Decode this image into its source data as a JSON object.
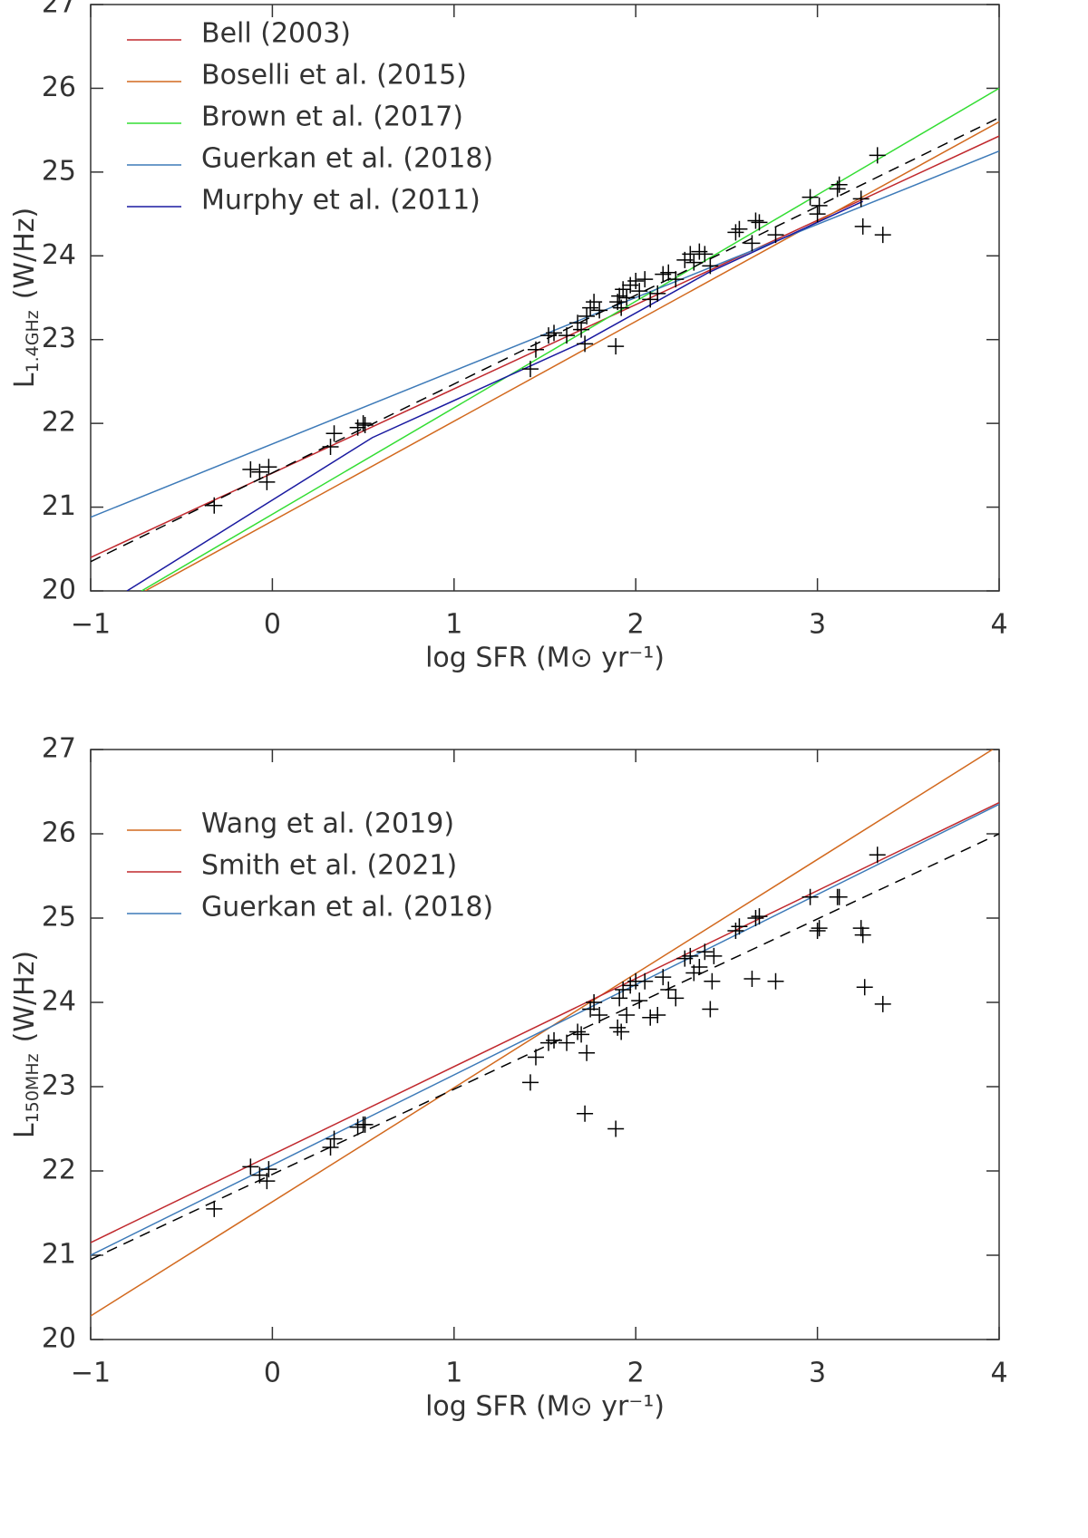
{
  "chart_data": [
    {
      "type": "line",
      "x_label": "log SFR (M⊙ yr⁻¹)",
      "y_label": {
        "main": "L",
        "sub": "1.4GHz",
        "unit": "(W/Hz)"
      },
      "xlim": [
        -1,
        4
      ],
      "ylim": [
        20,
        27
      ],
      "xticks": [
        {
          "value": -1,
          "label": "−1"
        },
        0,
        1,
        2,
        3,
        4
      ],
      "yticks": [
        20,
        21,
        22,
        23,
        24,
        25,
        26,
        27
      ],
      "legend": "upper left",
      "series": [
        {
          "name": "Bell (2003)",
          "color": "#c0282d",
          "x": [
            -1,
            4
          ],
          "values": [
            20.4,
            25.43
          ]
        },
        {
          "name": "Boselli et al. (2015)",
          "color": "#d2691e",
          "x": [
            -0.7,
            4
          ],
          "values": [
            20,
            25.6
          ]
        },
        {
          "name": "Brown et al. (2017)",
          "color": "#33dd33",
          "x": [
            -0.72,
            4
          ],
          "values": [
            20,
            26.0
          ]
        },
        {
          "name": "Guerkan et al. (2018)",
          "color": "#3d7ab8",
          "x": [
            -1,
            4
          ],
          "values": [
            20.88,
            25.25
          ]
        },
        {
          "name": "Murphy et al. (2011)",
          "color": "#1a1aa0",
          "x": [
            -0.8,
            0.55,
            1.72,
            2.4,
            3.25
          ],
          "values": [
            20,
            21.83,
            22.98,
            23.8,
            24.65
          ]
        },
        {
          "color": "#000000",
          "dash": true,
          "x": [
            -1,
            4
          ],
          "values": [
            20.35,
            25.65
          ]
        },
        {
          "type": "scatter",
          "marker": "+",
          "color": "#000000",
          "x": [
            -0.32,
            -0.12,
            -0.07,
            -0.03,
            -0.02,
            0.32,
            0.34,
            0.47,
            0.5,
            0.51,
            1.42,
            1.45,
            1.52,
            1.55,
            1.62,
            1.68,
            1.7,
            1.72,
            1.73,
            1.75,
            1.77,
            1.8,
            1.89,
            1.9,
            1.91,
            1.92,
            1.93,
            1.95,
            1.97,
            2.0,
            2.02,
            2.05,
            2.08,
            2.12,
            2.15,
            2.18,
            2.22,
            2.27,
            2.3,
            2.32,
            2.35,
            2.38,
            2.41,
            2.55,
            2.57,
            2.64,
            2.66,
            2.68,
            2.77,
            2.96,
            3.0,
            3.01,
            3.11,
            3.12,
            3.24,
            3.25,
            3.33,
            3.36
          ],
          "values": [
            21.02,
            21.45,
            21.42,
            21.3,
            21.48,
            21.72,
            21.88,
            21.95,
            22.0,
            21.98,
            22.65,
            22.88,
            23.05,
            23.08,
            23.05,
            23.2,
            23.12,
            22.95,
            23.28,
            23.38,
            23.45,
            23.35,
            22.92,
            23.45,
            23.52,
            23.38,
            23.6,
            23.5,
            23.65,
            23.7,
            23.58,
            23.72,
            23.48,
            23.55,
            23.78,
            23.8,
            23.72,
            23.95,
            24.02,
            23.92,
            24.05,
            24.02,
            23.88,
            24.28,
            24.32,
            24.15,
            24.42,
            24.4,
            24.25,
            24.7,
            24.5,
            24.6,
            24.8,
            24.85,
            24.68,
            24.35,
            25.2,
            24.25
          ]
        }
      ]
    },
    {
      "type": "line",
      "x_label": "log SFR (M⊙ yr⁻¹)",
      "y_label": {
        "main": "L",
        "sub": "150MHz",
        "unit": "(W/Hz)"
      },
      "xlim": [
        -1,
        4
      ],
      "ylim": [
        20,
        27
      ],
      "xticks": [
        {
          "value": -1,
          "label": "−1"
        },
        0,
        1,
        2,
        3,
        4
      ],
      "yticks": [
        20,
        21,
        22,
        23,
        24,
        25,
        26,
        27
      ],
      "legend": "upper left",
      "series": [
        {
          "name": "Wang et al. (2019)",
          "color": "#d2691e",
          "x": [
            -1,
            4
          ],
          "values": [
            20.28,
            27.05
          ]
        },
        {
          "name": "Smith et al. (2021)",
          "color": "#c0282d",
          "x": [
            -1,
            4
          ],
          "values": [
            21.15,
            26.37
          ]
        },
        {
          "name": "Guerkan et al. (2018)",
          "color": "#3d7ab8",
          "x": [
            -1,
            4
          ],
          "values": [
            21.0,
            26.35
          ]
        },
        {
          "color": "#000000",
          "dash": true,
          "x": [
            -1,
            4
          ],
          "values": [
            20.95,
            26.0
          ]
        },
        {
          "type": "scatter",
          "marker": "+",
          "color": "#000000",
          "x": [
            -0.32,
            -0.12,
            -0.07,
            -0.03,
            -0.02,
            0.32,
            0.34,
            0.47,
            0.5,
            0.51,
            1.42,
            1.45,
            1.52,
            1.55,
            1.62,
            1.68,
            1.7,
            1.72,
            1.73,
            1.75,
            1.77,
            1.8,
            1.89,
            1.9,
            1.91,
            1.92,
            1.93,
            1.95,
            1.97,
            2.0,
            2.02,
            2.05,
            2.08,
            2.12,
            2.15,
            2.18,
            2.22,
            2.27,
            2.3,
            2.32,
            2.35,
            2.38,
            2.41,
            2.42,
            2.43,
            2.55,
            2.57,
            2.64,
            2.66,
            2.68,
            2.77,
            2.96,
            3.0,
            3.01,
            3.11,
            3.12,
            3.24,
            3.25,
            3.26,
            3.33,
            3.36
          ],
          "values": [
            21.55,
            22.05,
            21.95,
            21.88,
            22.02,
            22.28,
            22.38,
            22.52,
            22.55,
            22.55,
            23.05,
            23.35,
            23.52,
            23.55,
            23.52,
            23.65,
            23.62,
            22.68,
            23.4,
            23.92,
            24.0,
            23.85,
            22.5,
            23.7,
            24.05,
            23.65,
            24.15,
            23.85,
            24.2,
            24.25,
            24.02,
            24.25,
            23.82,
            23.85,
            24.3,
            24.15,
            24.05,
            24.52,
            24.55,
            24.35,
            24.42,
            24.6,
            23.92,
            24.25,
            24.55,
            24.85,
            24.9,
            24.28,
            25.0,
            25.02,
            24.25,
            25.25,
            24.85,
            24.88,
            25.25,
            25.25,
            24.88,
            24.8,
            24.18,
            25.75,
            23.98
          ]
        }
      ]
    }
  ]
}
